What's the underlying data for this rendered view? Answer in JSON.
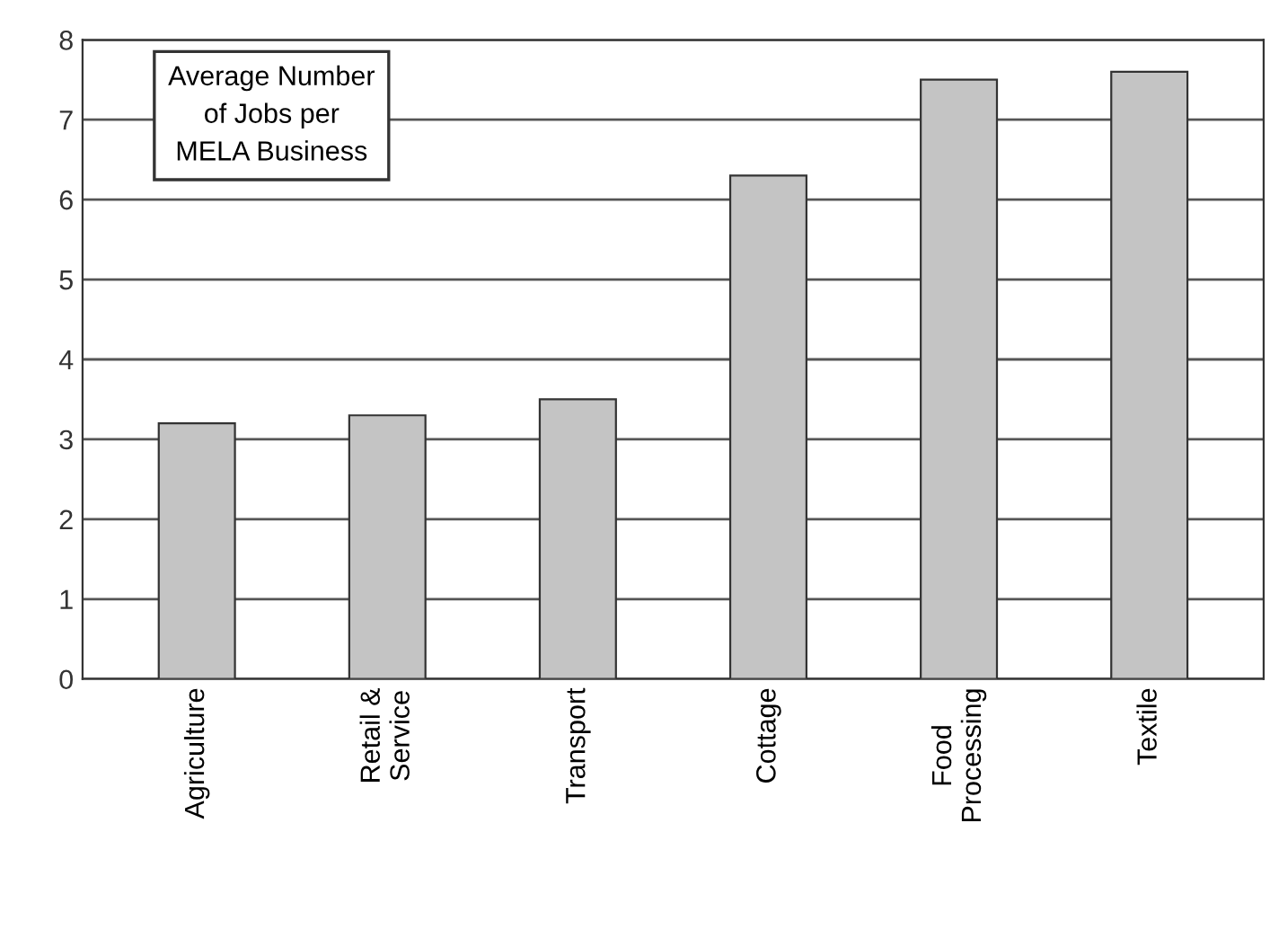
{
  "chart_data": {
    "type": "bar",
    "title": "Average Number\nof Jobs per\nMELA Business",
    "categories": [
      "Agriculture",
      "Retail &\nService",
      "Transport",
      "Cottage",
      "Food\nProcessing",
      "Textile"
    ],
    "values": [
      3.2,
      3.3,
      3.5,
      6.3,
      7.5,
      7.6
    ],
    "color": "#c4c4c4",
    "ylim": [
      0,
      8
    ],
    "yticks": [
      0,
      1,
      2,
      3,
      4,
      5,
      6,
      7,
      8
    ],
    "grid": "y"
  }
}
